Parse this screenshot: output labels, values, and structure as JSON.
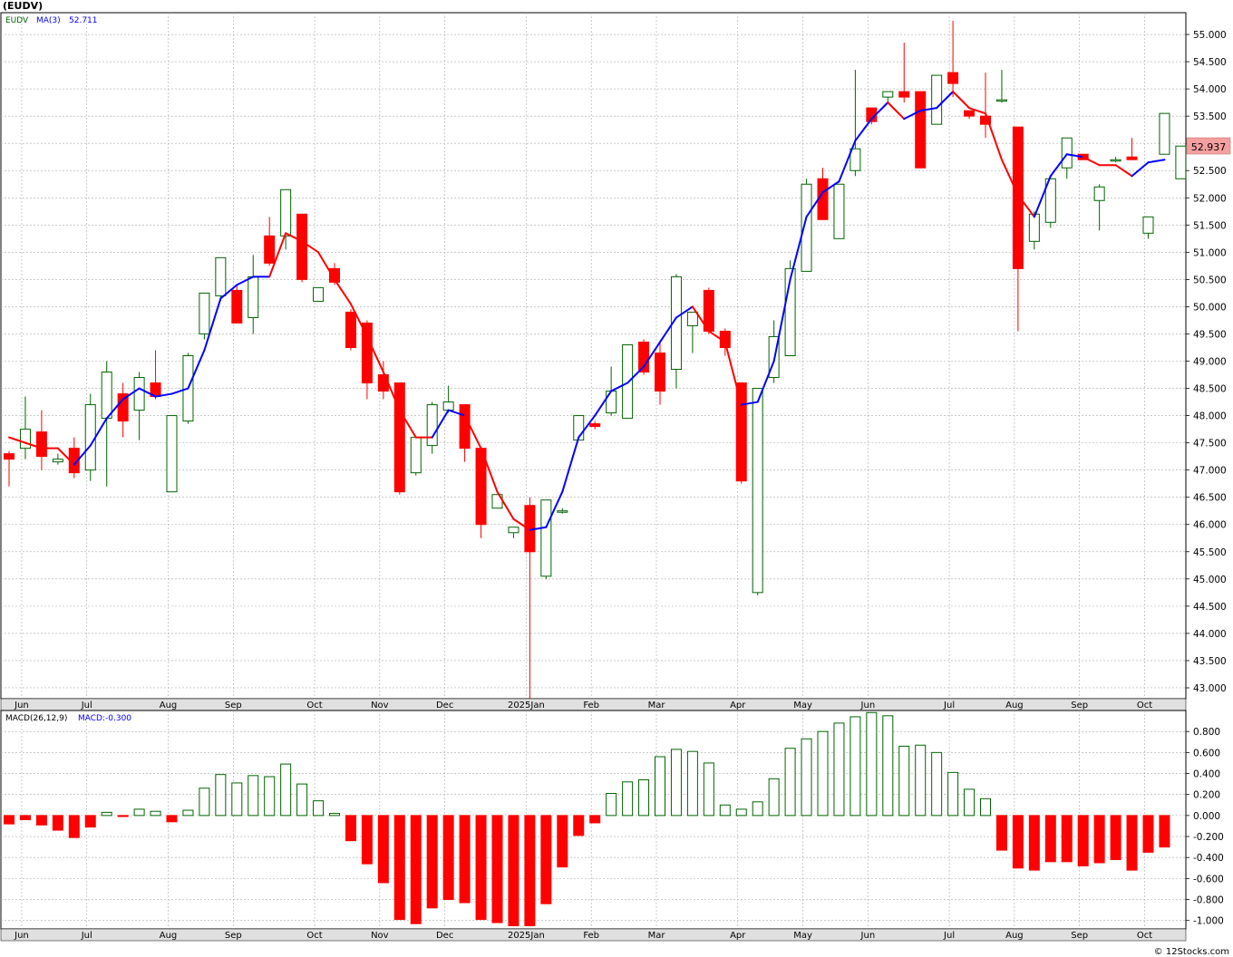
{
  "title": "(EUDV)",
  "credit": "© 12Stocks.com",
  "colors": {
    "up": "#006400",
    "down": "#ff0000",
    "ma": "#0000ff",
    "grid": "#aaaaaa",
    "price_tag": "#f4a0a0"
  },
  "chart_data": [
    {
      "type": "candlestick",
      "name": "price",
      "legend": {
        "symbol": "EUDV",
        "ma_label": "MA(3)",
        "ma_value": "52.711"
      },
      "last_price_label": "52.937",
      "ylim": [
        42.8,
        55.4
      ],
      "y_ticks": [
        "43.000",
        "43.500",
        "44.000",
        "44.500",
        "45.000",
        "45.500",
        "46.000",
        "46.500",
        "47.000",
        "47.500",
        "48.000",
        "48.500",
        "49.000",
        "49.500",
        "50.000",
        "50.500",
        "51.000",
        "51.500",
        "52.000",
        "52.500",
        "53.000",
        "53.500",
        "54.000",
        "54.500",
        "55.000"
      ],
      "x_month_labels": [
        {
          "label": "Jun",
          "index": 1
        },
        {
          "label": "Jul",
          "index": 5
        },
        {
          "label": "Aug",
          "index": 10
        },
        {
          "label": "Sep",
          "index": 14
        },
        {
          "label": "Oct",
          "index": 19
        },
        {
          "label": "Nov",
          "index": 23
        },
        {
          "label": "Dec",
          "index": 27
        },
        {
          "label": "2025Jan",
          "index": 32
        },
        {
          "label": "Feb",
          "index": 36
        },
        {
          "label": "Mar",
          "index": 40
        },
        {
          "label": "Apr",
          "index": 45
        },
        {
          "label": "May",
          "index": 49
        },
        {
          "label": "Jun",
          "index": 53
        },
        {
          "label": "Jul",
          "index": 58
        },
        {
          "label": "Aug",
          "index": 62
        },
        {
          "label": "Sep",
          "index": 66
        },
        {
          "label": "Oct",
          "index": 70
        }
      ],
      "ohlc": [
        [
          47.3,
          47.35,
          46.7,
          47.2
        ],
        [
          47.4,
          48.35,
          47.2,
          47.75
        ],
        [
          47.7,
          48.1,
          47.0,
          47.25
        ],
        [
          47.15,
          47.3,
          47.1,
          47.2
        ],
        [
          47.4,
          47.6,
          46.85,
          46.95
        ],
        [
          47.0,
          48.4,
          46.8,
          48.2
        ],
        [
          47.95,
          49.0,
          46.7,
          48.8
        ],
        [
          48.4,
          48.6,
          47.6,
          47.9
        ],
        [
          48.1,
          48.8,
          47.55,
          48.7
        ],
        [
          48.6,
          49.2,
          48.3,
          48.35
        ],
        [
          46.6,
          48.0,
          46.6,
          48.0
        ],
        [
          47.9,
          49.15,
          47.85,
          49.1
        ],
        [
          49.5,
          50.25,
          49.4,
          50.25
        ],
        [
          50.2,
          50.9,
          50.1,
          50.9
        ],
        [
          50.3,
          50.4,
          49.7,
          49.7
        ],
        [
          49.8,
          50.95,
          49.5,
          50.55
        ],
        [
          51.3,
          51.65,
          50.75,
          50.8
        ],
        [
          51.3,
          52.15,
          51.05,
          52.15
        ],
        [
          51.7,
          51.7,
          50.45,
          50.5
        ],
        [
          50.1,
          50.35,
          50.1,
          50.35
        ],
        [
          50.7,
          50.8,
          50.4,
          50.45
        ],
        [
          49.9,
          49.95,
          49.2,
          49.25
        ],
        [
          49.7,
          49.75,
          48.3,
          48.6
        ],
        [
          48.75,
          49.0,
          48.3,
          48.45
        ],
        [
          48.6,
          48.6,
          46.55,
          46.6
        ],
        [
          46.95,
          47.6,
          46.9,
          47.6
        ],
        [
          47.45,
          48.25,
          47.3,
          48.2
        ],
        [
          48.1,
          48.55,
          48.05,
          48.25
        ],
        [
          48.2,
          48.2,
          47.15,
          47.4
        ],
        [
          47.4,
          47.4,
          45.75,
          46.0
        ],
        [
          46.3,
          46.55,
          46.3,
          46.55
        ],
        [
          45.85,
          45.95,
          45.75,
          45.95
        ],
        [
          46.35,
          46.5,
          42.8,
          45.5
        ],
        [
          45.05,
          46.45,
          45.0,
          46.45
        ],
        [
          46.25,
          46.3,
          46.2,
          46.25
        ],
        [
          47.55,
          48.0,
          47.55,
          48.0
        ],
        [
          47.85,
          47.9,
          47.75,
          47.8
        ],
        [
          48.05,
          48.9,
          48.0,
          48.45
        ],
        [
          47.95,
          49.3,
          47.95,
          49.3
        ],
        [
          49.35,
          49.4,
          48.75,
          48.8
        ],
        [
          49.15,
          49.35,
          48.2,
          48.45
        ],
        [
          48.85,
          50.6,
          48.5,
          50.55
        ],
        [
          49.65,
          49.85,
          49.15,
          49.9
        ],
        [
          50.3,
          50.35,
          49.5,
          49.55
        ],
        [
          49.55,
          49.6,
          49.1,
          49.25
        ],
        [
          48.6,
          48.6,
          46.75,
          46.8
        ],
        [
          44.75,
          48.5,
          44.7,
          48.5
        ],
        [
          48.7,
          49.75,
          48.6,
          49.45
        ],
        [
          49.1,
          50.85,
          49.1,
          50.7
        ],
        [
          50.65,
          52.35,
          50.65,
          52.25
        ],
        [
          52.35,
          52.55,
          51.65,
          51.6
        ],
        [
          51.25,
          52.25,
          51.25,
          52.25
        ],
        [
          52.5,
          54.35,
          52.4,
          52.9
        ],
        [
          53.65,
          53.65,
          53.35,
          53.4
        ],
        [
          53.85,
          53.95,
          53.75,
          53.95
        ],
        [
          53.95,
          54.85,
          53.75,
          53.85
        ],
        [
          53.95,
          53.95,
          52.55,
          52.55
        ],
        [
          53.35,
          54.25,
          53.35,
          54.25
        ],
        [
          54.3,
          55.25,
          53.85,
          54.1
        ],
        [
          53.6,
          53.6,
          53.45,
          53.5
        ],
        [
          53.5,
          54.3,
          53.1,
          53.35
        ],
        [
          53.8,
          54.35,
          53.75,
          53.8
        ],
        [
          53.3,
          53.3,
          49.55,
          50.7
        ],
        [
          51.2,
          51.75,
          51.05,
          51.7
        ],
        [
          51.55,
          52.4,
          51.45,
          52.35
        ],
        [
          52.55,
          53.1,
          52.35,
          53.1
        ],
        [
          52.8,
          52.8,
          52.7,
          52.7
        ],
        [
          51.95,
          52.25,
          51.4,
          52.2
        ],
        [
          52.7,
          52.75,
          52.65,
          52.7
        ],
        [
          52.75,
          53.1,
          52.7,
          52.7
        ],
        [
          51.35,
          51.65,
          51.25,
          51.65
        ],
        [
          52.8,
          53.55,
          52.8,
          53.55
        ],
        [
          52.35,
          52.95,
          52.35,
          52.95
        ]
      ],
      "ma": [
        47.6,
        47.5,
        47.4,
        47.4,
        47.1,
        47.45,
        47.95,
        48.3,
        48.5,
        48.35,
        48.4,
        48.5,
        49.2,
        50.15,
        50.4,
        50.55,
        50.55,
        51.35,
        51.2,
        51.0,
        50.5,
        50.05,
        49.45,
        48.8,
        48.1,
        47.6,
        47.6,
        48.1,
        48.0,
        47.4,
        46.6,
        46.1,
        45.9,
        45.95,
        46.6,
        47.6,
        48.0,
        48.45,
        48.6,
        48.9,
        49.35,
        49.8,
        50.0,
        49.55,
        49.35,
        48.2,
        48.25,
        49.0,
        50.5,
        51.65,
        52.1,
        52.3,
        53.05,
        53.45,
        53.75,
        53.45,
        53.6,
        53.65,
        53.95,
        53.65,
        53.55,
        52.7,
        52.05,
        51.65,
        52.4,
        52.8,
        52.75,
        52.6,
        52.6,
        52.4,
        52.65,
        52.7
      ],
      "ma_trend": [
        "down",
        "down",
        "down",
        "down",
        "up",
        "up",
        "up",
        "up",
        "up",
        "up",
        "up",
        "up",
        "up",
        "up",
        "up",
        "up",
        "down",
        "down",
        "down",
        "down",
        "down",
        "down",
        "down",
        "down",
        "down",
        "down",
        "up",
        "up",
        "down",
        "down",
        "down",
        "down",
        "up",
        "up",
        "up",
        "up",
        "up",
        "up",
        "up",
        "up",
        "up",
        "up",
        "down",
        "down",
        "down",
        "up",
        "up",
        "up",
        "up",
        "up",
        "up",
        "up",
        "up",
        "up",
        "down",
        "up",
        "up",
        "up",
        "down",
        "down",
        "down",
        "down",
        "down",
        "up",
        "up",
        "up",
        "down",
        "down",
        "down",
        "up",
        "up",
        "up"
      ]
    },
    {
      "type": "bar",
      "name": "macd",
      "legend": {
        "label": "MACD(26,12,9)",
        "value_label": "MACD:-0.300"
      },
      "ylim": [
        -1.08,
        1.0
      ],
      "y_ticks": [
        "0.800",
        "0.600",
        "0.400",
        "0.200",
        "0.000",
        "-0.200",
        "-0.400",
        "-0.600",
        "-0.800",
        "-1.000"
      ],
      "values": [
        -0.08,
        -0.04,
        -0.09,
        -0.14,
        -0.21,
        -0.11,
        0.03,
        -0.01,
        0.06,
        0.04,
        -0.06,
        0.05,
        0.26,
        0.39,
        0.31,
        0.38,
        0.37,
        0.49,
        0.3,
        0.14,
        0.02,
        -0.24,
        -0.46,
        -0.64,
        -0.99,
        -1.03,
        -0.88,
        -0.8,
        -0.83,
        -0.99,
        -1.02,
        -1.05,
        -1.05,
        -0.84,
        -0.49,
        -0.19,
        -0.07,
        0.21,
        0.32,
        0.34,
        0.56,
        0.63,
        0.61,
        0.5,
        0.1,
        0.06,
        0.13,
        0.35,
        0.64,
        0.73,
        0.8,
        0.88,
        0.94,
        0.98,
        0.95,
        0.66,
        0.67,
        0.6,
        0.41,
        0.25,
        0.16,
        -0.33,
        -0.5,
        -0.52,
        -0.44,
        -0.44,
        -0.48,
        -0.45,
        -0.42,
        -0.52,
        -0.35,
        -0.3
      ]
    }
  ]
}
